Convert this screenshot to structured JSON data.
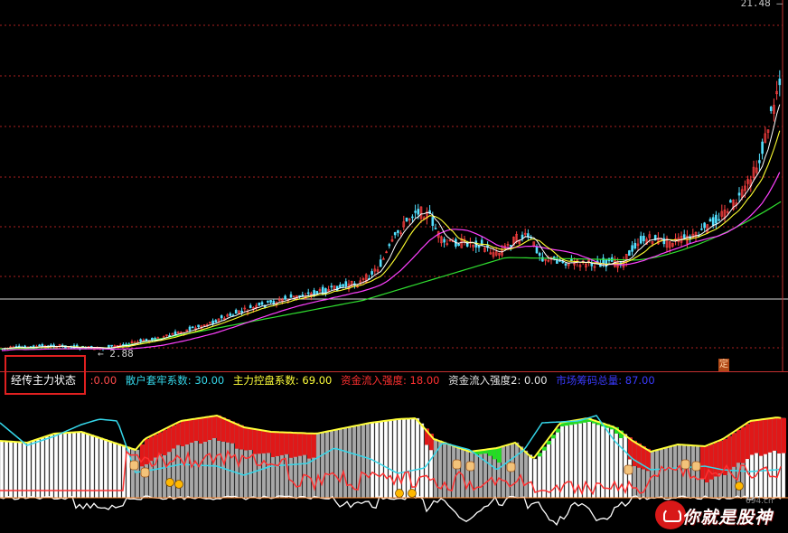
{
  "price_top_label": "21.48",
  "price_low_label": "2.88",
  "indicator": {
    "name": "经传主力状态",
    "values": [
      {
        "text": ":0.00",
        "color": "#ff4a4a"
      },
      {
        "text": "散户套牢系数: 30.00",
        "color": "#35d7ea"
      },
      {
        "text": "主力控盘系数: 69.00",
        "color": "#ffff3a"
      },
      {
        "text": "资金流入强度: 18.00",
        "color": "#ff3030"
      },
      {
        "text": "资金流入强度2: 0.00",
        "color": "#e8e8e8"
      },
      {
        "text": "市场筹码总量: 87.00",
        "color": "#3a3aff"
      }
    ]
  },
  "ding_badge": "定",
  "watermark": {
    "text": "你就是股神",
    "url": "694.cn"
  },
  "colors": {
    "candle_up": "#ff4040",
    "candle_down": "#54e0ff",
    "ma_short": "#ffffff",
    "ma_mid": "#ffff30",
    "ma_long": "#ff40ff",
    "ma_longest": "#30e030",
    "grid": "#aa2020"
  }
}
